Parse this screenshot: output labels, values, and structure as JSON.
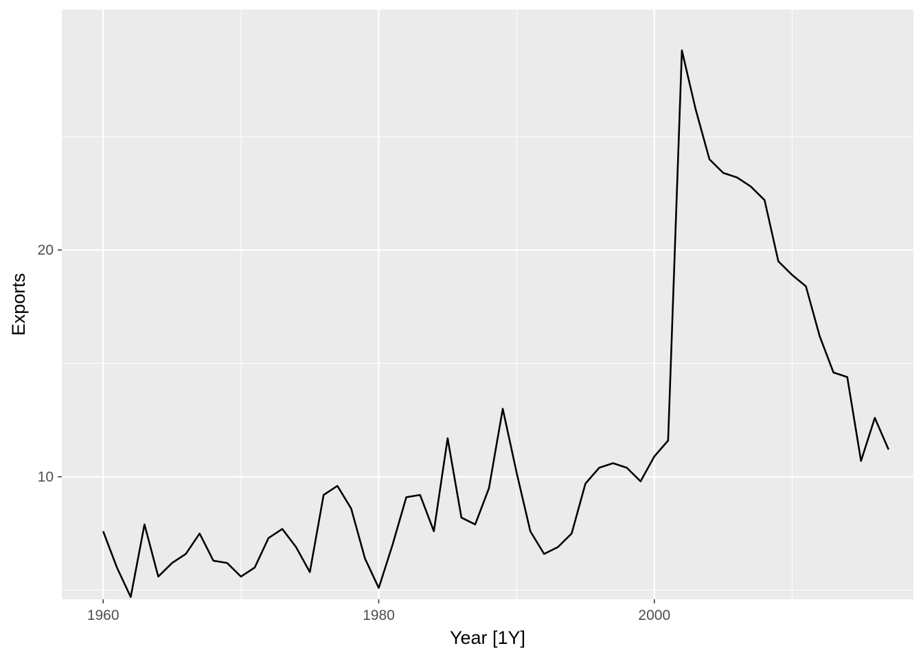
{
  "colors": {
    "panel_background": "#ebebeb",
    "gridline": "#ffffff",
    "series_line": "#000000",
    "tick_text": "#4d4d4d",
    "tick_mark": "#333333"
  },
  "chart_data": {
    "type": "line",
    "title": "",
    "xlabel": "Year [1Y]",
    "ylabel": "Exports",
    "xlim": [
      1957,
      2018.8
    ],
    "ylim": [
      4.6,
      30.6
    ],
    "x_ticks": [
      1960,
      1980,
      2000
    ],
    "x_tick_labels": [
      "1960",
      "1980",
      "2000"
    ],
    "x_minor_ticks": [
      1970,
      1990,
      2010
    ],
    "y_ticks": [
      10,
      20
    ],
    "y_tick_labels": [
      "10",
      "20"
    ],
    "y_minor_ticks": [
      5,
      15,
      25
    ],
    "grid": true,
    "legend": "none",
    "x": [
      1960,
      1961,
      1962,
      1963,
      1964,
      1965,
      1966,
      1967,
      1968,
      1969,
      1970,
      1971,
      1972,
      1973,
      1974,
      1975,
      1976,
      1977,
      1978,
      1979,
      1980,
      1981,
      1982,
      1983,
      1984,
      1985,
      1986,
      1987,
      1988,
      1989,
      1990,
      1991,
      1992,
      1993,
      1994,
      1995,
      1996,
      1997,
      1998,
      1999,
      2000,
      2001,
      2002,
      2003,
      2004,
      2005,
      2006,
      2007,
      2008,
      2009,
      2010,
      2011,
      2012,
      2013,
      2014,
      2015,
      2016,
      2017
    ],
    "series": [
      {
        "values": [
          7.6,
          6.0,
          4.7,
          7.9,
          5.6,
          6.2,
          6.6,
          7.5,
          6.3,
          6.2,
          5.6,
          6.0,
          7.3,
          7.7,
          6.9,
          5.8,
          9.2,
          9.6,
          8.6,
          6.4,
          5.1,
          7.0,
          9.1,
          9.2,
          7.6,
          11.7,
          8.2,
          7.9,
          9.5,
          13.0,
          10.2,
          7.6,
          6.6,
          6.9,
          7.5,
          9.7,
          10.4,
          10.6,
          10.4,
          9.8,
          10.9,
          11.6,
          28.8,
          26.2,
          24.0,
          23.4,
          23.2,
          22.8,
          22.2,
          19.5,
          18.9,
          18.4,
          16.2,
          14.6,
          14.4,
          10.7,
          12.6,
          11.2
        ]
      }
    ]
  }
}
